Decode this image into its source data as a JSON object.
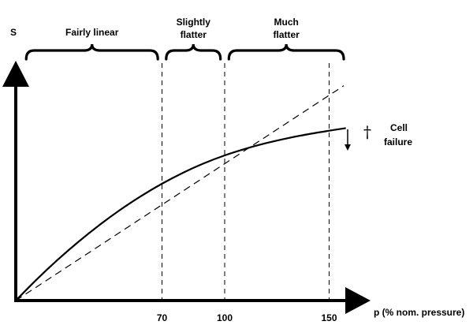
{
  "chart_data": {
    "type": "line",
    "title": "",
    "ylabel": "S",
    "xlabel": "p (% nom. pressure)",
    "xlim": [
      0,
      155
    ],
    "ylim": [
      0,
      1.4
    ],
    "x_ticks": [
      {
        "value": 70,
        "label": "70"
      },
      {
        "value": 100,
        "label": "100"
      },
      {
        "value": 150,
        "label": "150"
      }
    ],
    "series": [
      {
        "name": "",
        "style": "solid",
        "x": [
          0,
          10,
          20,
          30,
          40,
          50,
          60,
          70,
          80,
          90,
          100,
          110,
          120,
          130,
          140,
          150,
          158
        ],
        "y": [
          0,
          0.145,
          0.28,
          0.405,
          0.52,
          0.625,
          0.72,
          0.805,
          0.88,
          0.945,
          1.0,
          1.046,
          1.085,
          1.118,
          1.146,
          1.17,
          1.188
        ]
      },
      {
        "name": "",
        "style": "dashed",
        "x": [
          0,
          157
        ],
        "y": [
          0,
          1.48
        ]
      }
    ],
    "reference_lines_x": [
      70,
      100,
      150
    ],
    "regions": [
      {
        "label_lines": [
          "Fairly linear"
        ],
        "x_start": 5,
        "x_end": 68
      },
      {
        "label_lines": [
          "Slightly",
          "flatter"
        ],
        "x_start": 72,
        "x_end": 98
      },
      {
        "label_lines": [
          "Much",
          "flatter"
        ],
        "x_start": 102,
        "x_end": 157
      }
    ],
    "annotation": {
      "symbol": "†",
      "label_lines": [
        "Cell",
        "failure"
      ]
    },
    "grid": false
  }
}
